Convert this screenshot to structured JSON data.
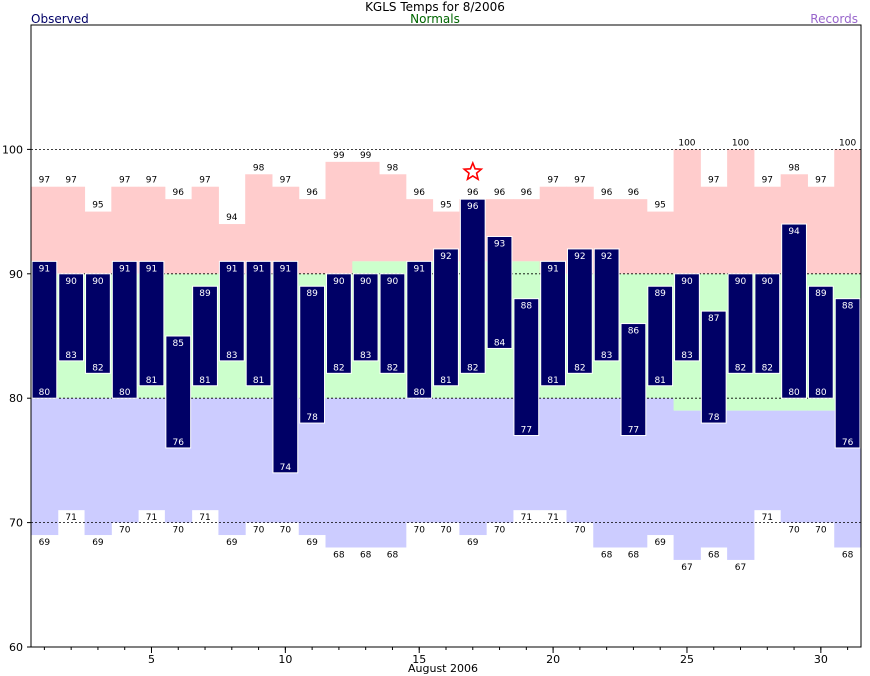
{
  "chart_data": {
    "type": "bar",
    "title": "KGLS Temps for 8/2006",
    "xlabel": "August 2006",
    "ylabel": "",
    "ylim": [
      60,
      110
    ],
    "xlim": [
      0.5,
      31.5
    ],
    "yticks": [
      60,
      70,
      80,
      90,
      100
    ],
    "xticks": [
      5,
      10,
      15,
      20,
      25,
      30
    ],
    "grid_y_dashed": [
      70,
      80,
      90,
      100
    ],
    "legend": {
      "observed": "Observed",
      "normals": "Normals",
      "records": "Records"
    },
    "days": [
      1,
      2,
      3,
      4,
      5,
      6,
      7,
      8,
      9,
      10,
      11,
      12,
      13,
      14,
      15,
      16,
      17,
      18,
      19,
      20,
      21,
      22,
      23,
      24,
      25,
      26,
      27,
      28,
      29,
      30,
      31
    ],
    "obs_high": [
      91,
      90,
      90,
      91,
      91,
      85,
      89,
      91,
      91,
      91,
      89,
      90,
      90,
      90,
      91,
      92,
      96,
      93,
      88,
      91,
      92,
      92,
      86,
      89,
      90,
      87,
      90,
      90,
      94,
      89,
      88
    ],
    "obs_low": [
      80,
      83,
      82,
      80,
      81,
      76,
      81,
      83,
      81,
      74,
      78,
      82,
      83,
      82,
      80,
      81,
      82,
      84,
      77,
      81,
      82,
      83,
      77,
      81,
      83,
      78,
      82,
      82,
      80,
      80,
      76
    ],
    "normal_high": [
      90,
      90,
      90,
      90,
      90,
      90,
      90,
      90,
      90,
      90,
      90,
      90,
      91,
      91,
      91,
      91,
      91,
      91,
      91,
      90,
      90,
      90,
      90,
      90,
      90,
      90,
      90,
      90,
      90,
      90,
      90
    ],
    "normal_low": [
      80,
      80,
      80,
      80,
      80,
      80,
      80,
      80,
      80,
      80,
      80,
      80,
      80,
      80,
      80,
      80,
      80,
      80,
      80,
      80,
      80,
      80,
      80,
      80,
      79,
      79,
      79,
      79,
      79,
      79,
      79
    ],
    "record_high": [
      97,
      97,
      95,
      97,
      97,
      96,
      97,
      94,
      98,
      97,
      96,
      99,
      99,
      98,
      96,
      95,
      96,
      96,
      96,
      97,
      97,
      96,
      96,
      95,
      100,
      97,
      100,
      97,
      98,
      97,
      100
    ],
    "record_low": [
      69,
      71,
      69,
      70,
      71,
      70,
      71,
      69,
      70,
      70,
      69,
      68,
      68,
      68,
      70,
      70,
      69,
      70,
      71,
      71,
      70,
      68,
      68,
      69,
      67,
      68,
      67,
      71,
      70,
      70,
      68
    ],
    "star_day": 17,
    "colors": {
      "observed_bar": "#000066",
      "normals_band": "#ccffcc",
      "record_high_band": "#ffcccc",
      "record_low_band": "#ccccff",
      "star": "#ff0000",
      "observed_legend": "#000066",
      "normals_legend": "#006600",
      "records_legend": "#9966cc",
      "bar_label_text": "#ffffff",
      "record_label_text": "#000000"
    }
  }
}
